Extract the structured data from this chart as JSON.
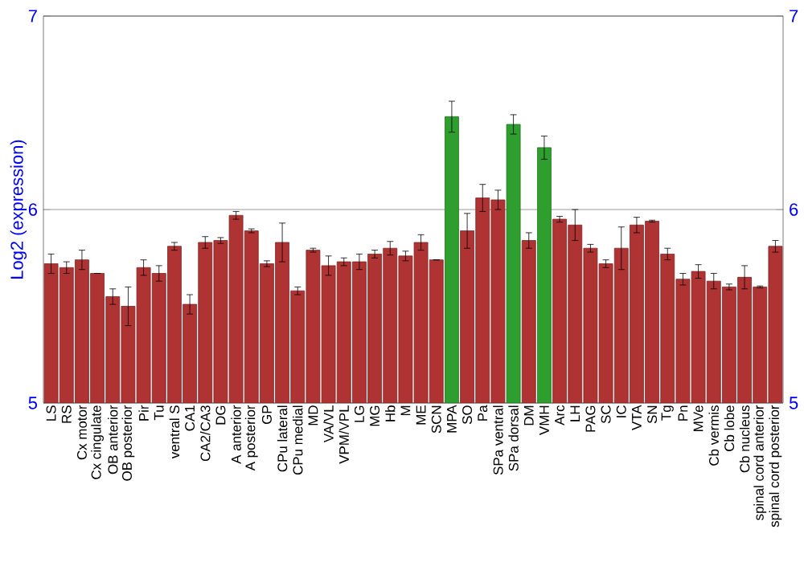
{
  "chart_data": {
    "type": "bar",
    "ylabel": "Log2 (expression)",
    "categories": [
      "LS",
      "RS",
      "Cx motor",
      "Cx cingulate",
      "OB anterior",
      "OB posterior",
      "Pir",
      "Tu",
      "ventral S",
      "CA1",
      "CA2/CA3",
      "DG",
      "A anterior",
      "A posterior",
      "GP",
      "CPu lateral",
      "CPu medial",
      "MD",
      "VA/VL",
      "VPM/VPL",
      "LG",
      "MG",
      "Hb",
      "M",
      "ME",
      "SCN",
      "MPA",
      "SO",
      "Pa",
      "SPa ventral",
      "SPa dorsal",
      "DM",
      "VMH",
      "Arc",
      "LH",
      "PAG",
      "SC",
      "IC",
      "VTA",
      "SN",
      "Tg",
      "Pn",
      "MVe",
      "Cb vermis",
      "Cb lobe",
      "Cb nucleus",
      "spinal cord anterior",
      "spinal cord posterior"
    ],
    "values": [
      5.72,
      5.7,
      5.74,
      5.67,
      5.55,
      5.5,
      5.7,
      5.67,
      5.81,
      5.51,
      5.83,
      5.84,
      5.97,
      5.89,
      5.72,
      5.83,
      5.58,
      5.79,
      5.71,
      5.73,
      5.73,
      5.77,
      5.8,
      5.76,
      5.83,
      5.74,
      6.48,
      5.89,
      6.06,
      6.05,
      6.44,
      5.84,
      6.32,
      5.95,
      5.92,
      5.8,
      5.72,
      5.8,
      5.92,
      5.94,
      5.77,
      5.64,
      5.68,
      5.63,
      5.6,
      5.65,
      5.6,
      5.81
    ],
    "errors": [
      0.05,
      0.03,
      0.05,
      0.0,
      0.04,
      0.1,
      0.04,
      0.04,
      0.02,
      0.05,
      0.03,
      0.015,
      0.02,
      0.01,
      0.015,
      0.1,
      0.02,
      0.01,
      0.05,
      0.02,
      0.04,
      0.02,
      0.035,
      0.025,
      0.04,
      0.0,
      0.08,
      0.09,
      0.07,
      0.05,
      0.05,
      0.04,
      0.06,
      0.015,
      0.08,
      0.02,
      0.02,
      0.11,
      0.04,
      0.005,
      0.03,
      0.03,
      0.035,
      0.04,
      0.015,
      0.06,
      0.005,
      0.03
    ],
    "colors": [
      "#b03333",
      "#b03333",
      "#b03333",
      "#b03333",
      "#b03333",
      "#b03333",
      "#b03333",
      "#b03333",
      "#b03333",
      "#b03333",
      "#b03333",
      "#b03333",
      "#b03333",
      "#b03333",
      "#b03333",
      "#b03333",
      "#b03333",
      "#b03333",
      "#b03333",
      "#b03333",
      "#b03333",
      "#b03333",
      "#b03333",
      "#b03333",
      "#b03333",
      "#b03333",
      "#2e9e2e",
      "#b03333",
      "#b03333",
      "#b03333",
      "#2e9e2e",
      "#b03333",
      "#2e9e2e",
      "#b03333",
      "#b03333",
      "#b03333",
      "#b03333",
      "#b03333",
      "#b03333",
      "#b03333",
      "#b03333",
      "#b03333",
      "#b03333",
      "#b03333",
      "#b03333",
      "#b03333",
      "#b03333",
      "#b03333"
    ],
    "ylim": [
      5,
      7
    ],
    "yticks": [
      5,
      6,
      7
    ],
    "y2lim": [
      5,
      7
    ],
    "y2ticks": [
      5,
      6,
      7
    ],
    "grid": "y"
  }
}
